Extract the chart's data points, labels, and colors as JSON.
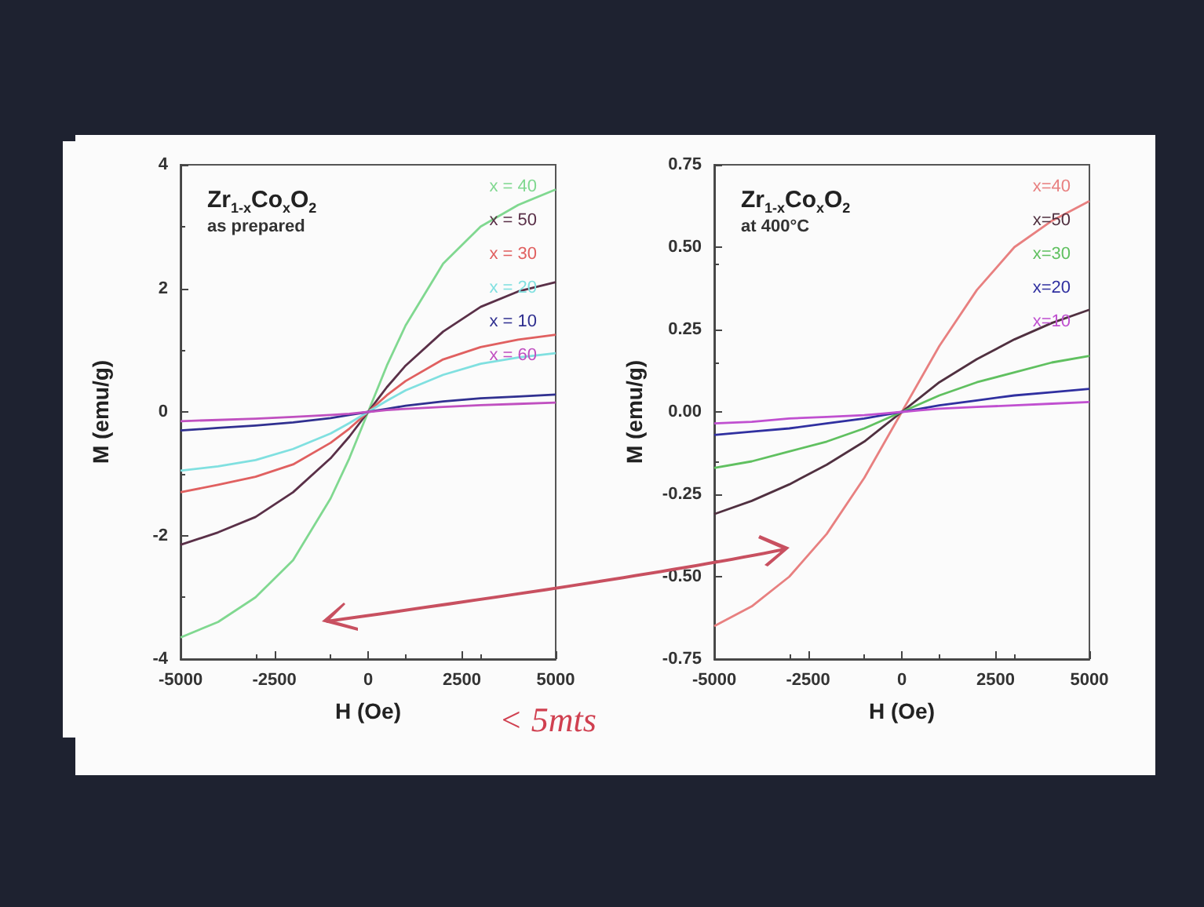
{
  "chart_data": [
    {
      "type": "line",
      "title": "Zr$_{1-x}$Co$_{x}$O$_{2}$",
      "subtitle": "as prepared",
      "xlabel": "H (Oe)",
      "ylabel": "M (emu/g)",
      "annotations": [
        "< 5mts"
      ],
      "legend": "top right",
      "marker": "none",
      "x": [
        -5000,
        -4000,
        -3000,
        -2000,
        -1000,
        -500,
        0,
        500,
        1000,
        2000,
        3000,
        4000,
        5000
      ],
      "xlim": [
        -5000,
        5000
      ],
      "xticks": [
        -5000,
        -2500,
        0,
        2500,
        5000
      ],
      "ylim": [
        -4,
        4
      ],
      "yticks": [
        -4,
        -2,
        0,
        2,
        4
      ],
      "series": [
        {
          "name": "x = 40",
          "color": "#80d890",
          "values": [
            -3.65,
            -3.4,
            -3.0,
            -2.4,
            -1.4,
            -0.75,
            0,
            0.75,
            1.4,
            2.4,
            3.0,
            3.35,
            3.6
          ]
        },
        {
          "name": "x = 50",
          "color": "#5a3048",
          "values": [
            -2.15,
            -1.95,
            -1.7,
            -1.3,
            -0.75,
            -0.4,
            0,
            0.4,
            0.75,
            1.3,
            1.7,
            1.95,
            2.1
          ]
        },
        {
          "name": "x = 30",
          "color": "#e06060",
          "values": [
            -1.3,
            -1.18,
            -1.05,
            -0.85,
            -0.5,
            -0.27,
            0,
            0.27,
            0.5,
            0.85,
            1.05,
            1.17,
            1.25
          ]
        },
        {
          "name": "x = 20",
          "color": "#80e0e0",
          "values": [
            -0.95,
            -0.88,
            -0.78,
            -0.6,
            -0.35,
            -0.18,
            0,
            0.18,
            0.35,
            0.6,
            0.78,
            0.88,
            0.95
          ]
        },
        {
          "name": "x = 10",
          "color": "#303090",
          "values": [
            -0.3,
            -0.26,
            -0.22,
            -0.17,
            -0.1,
            -0.05,
            0,
            0.05,
            0.1,
            0.17,
            0.22,
            0.25,
            0.28
          ]
        },
        {
          "name": "x = 60",
          "color": "#c050c0",
          "values": [
            -0.15,
            -0.13,
            -0.11,
            -0.08,
            -0.05,
            -0.03,
            0,
            0.03,
            0.05,
            0.08,
            0.11,
            0.13,
            0.15
          ]
        }
      ]
    },
    {
      "type": "line",
      "title": "Zr$_{1-x}$Co$_{x}$O$_{2}$",
      "subtitle": "at 400°C",
      "xlabel": "H (Oe)",
      "ylabel": "M (emu/g)",
      "legend": "top right",
      "marker": "none",
      "x": [
        -5000,
        -4000,
        -3000,
        -2000,
        -1000,
        -500,
        0,
        500,
        1000,
        2000,
        3000,
        4000,
        5000
      ],
      "xlim": [
        -5000,
        5000
      ],
      "xticks": [
        -5000,
        -2500,
        0,
        2500,
        5000
      ],
      "ylim": [
        -0.75,
        0.75
      ],
      "yticks": [
        {
          "value": -0.75,
          "label": "-0.75"
        },
        {
          "value": -0.5,
          "label": "-0.50"
        },
        {
          "value": -0.25,
          "label": "-0.25"
        },
        {
          "value": 0,
          "label": "0.00"
        },
        {
          "value": 0.25,
          "label": "0.25"
        },
        {
          "value": 0.5,
          "label": "0.50"
        },
        {
          "value": 0.75,
          "label": "0.75"
        }
      ],
      "series": [
        {
          "name": "x=40",
          "color": "#e88080",
          "values": [
            -0.65,
            -0.59,
            -0.5,
            -0.37,
            -0.2,
            -0.1,
            0,
            0.1,
            0.2,
            0.37,
            0.5,
            0.58,
            0.64
          ]
        },
        {
          "name": "x=50",
          "color": "#503040",
          "values": [
            -0.31,
            -0.27,
            -0.22,
            -0.16,
            -0.09,
            -0.045,
            0,
            0.045,
            0.09,
            0.16,
            0.22,
            0.27,
            0.31
          ]
        },
        {
          "name": "x=30",
          "color": "#60c060",
          "values": [
            -0.17,
            -0.15,
            -0.12,
            -0.09,
            -0.05,
            -0.025,
            0,
            0.025,
            0.05,
            0.09,
            0.12,
            0.15,
            0.17
          ]
        },
        {
          "name": "x=20",
          "color": "#3030a0",
          "values": [
            -0.07,
            -0.06,
            -0.05,
            -0.035,
            -0.02,
            -0.01,
            0,
            0.01,
            0.02,
            0.035,
            0.05,
            0.06,
            0.07
          ]
        },
        {
          "name": "x=10",
          "color": "#c050d0",
          "values": [
            -0.035,
            -0.03,
            -0.02,
            -0.015,
            -0.01,
            -0.005,
            0,
            0.005,
            0.01,
            0.015,
            0.02,
            0.025,
            0.03
          ]
        }
      ]
    }
  ]
}
